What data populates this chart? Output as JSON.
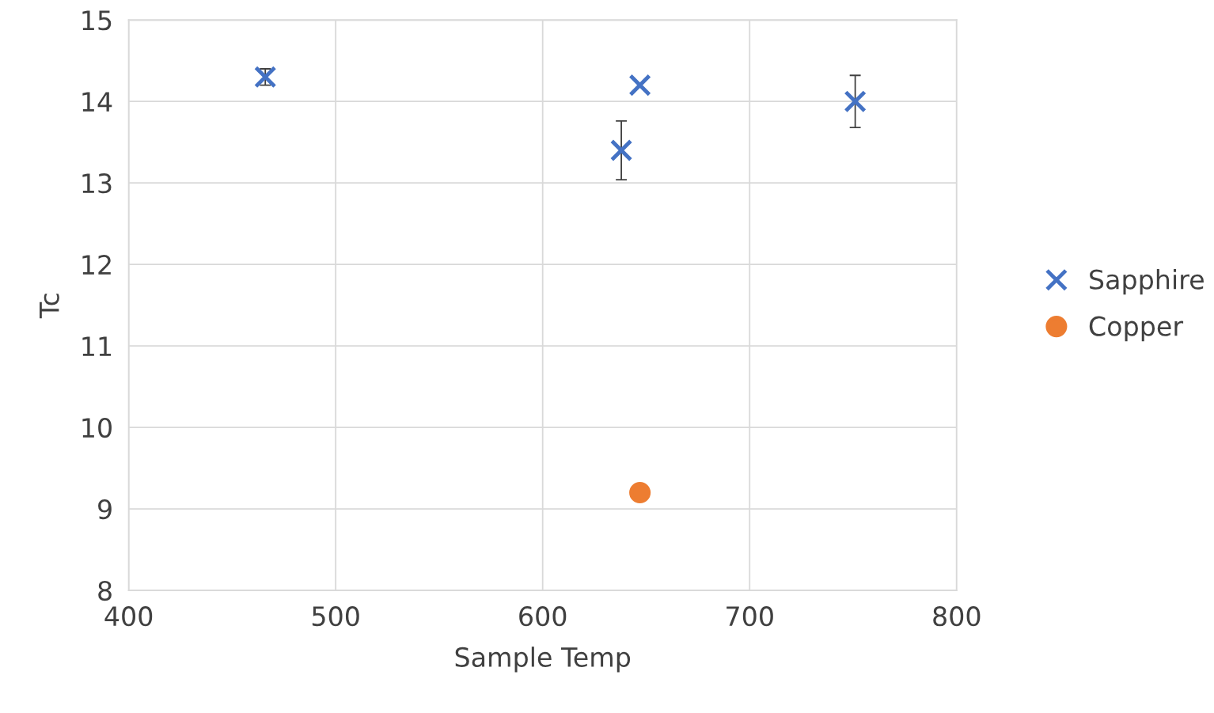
{
  "chart_data": {
    "type": "scatter",
    "xlabel": "Sample Temp",
    "ylabel": "Tc",
    "xlim": [
      400,
      800
    ],
    "xticks": [
      400,
      500,
      600,
      700,
      800
    ],
    "ylim": [
      8,
      15
    ],
    "yticks": [
      8,
      9,
      10,
      11,
      12,
      13,
      14,
      15
    ],
    "grid": true,
    "legend": "right",
    "series": [
      {
        "name": "Sapphire",
        "color": "#4472c4",
        "marker": "cross",
        "x": [
          466,
          638,
          647,
          751
        ],
        "values": [
          14.3,
          13.4,
          14.2,
          14.0
        ],
        "errors": [
          0.1,
          0.36,
          null,
          0.32
        ]
      },
      {
        "name": "Copper",
        "color": "#ed7d31",
        "marker": "circle",
        "x": [
          647
        ],
        "values": [
          9.2
        ]
      }
    ]
  }
}
